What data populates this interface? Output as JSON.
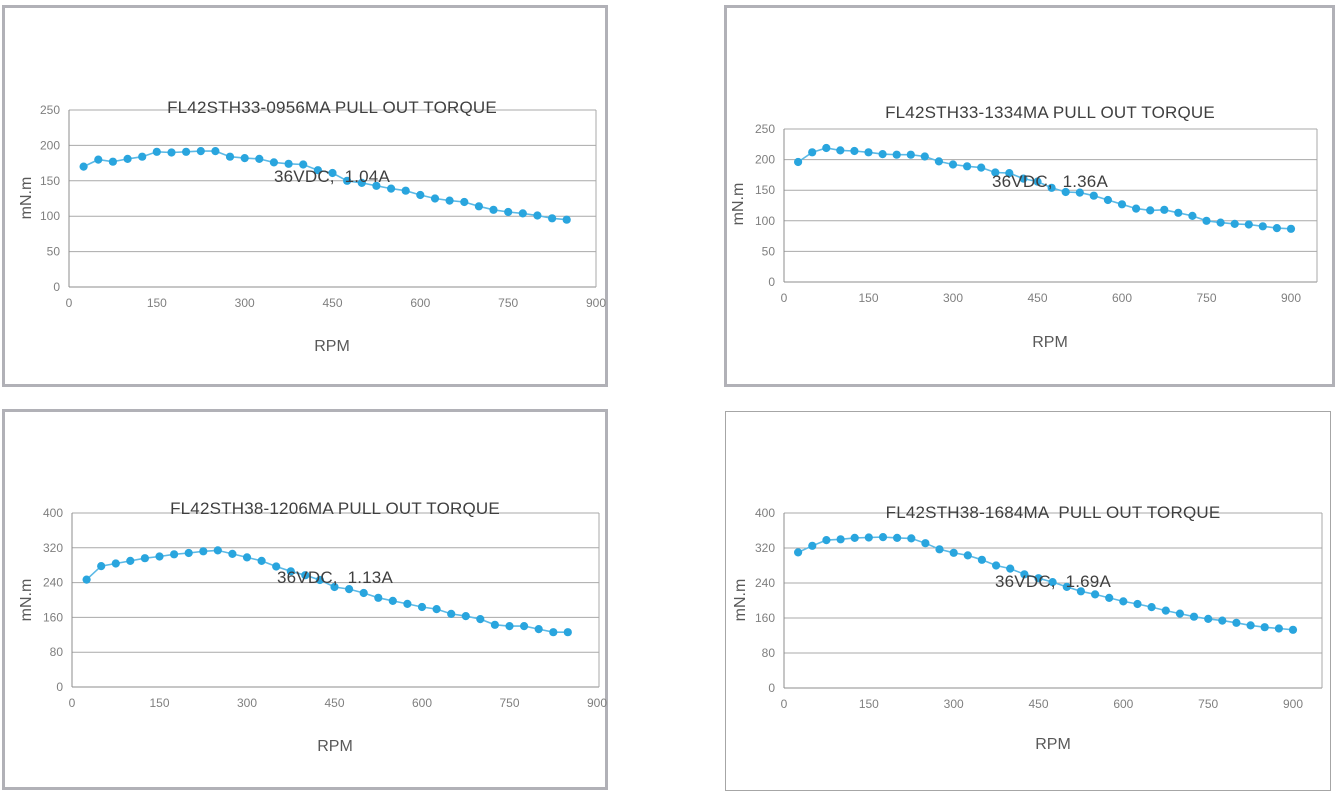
{
  "page": {
    "background": "#ffffff",
    "panel_border_color": "#b1b1b7"
  },
  "chart_data": [
    {
      "type": "line",
      "title": "FL42STH33-0956MA PULL OUT TORQUE",
      "subtitle": "36VDC,  1.04A",
      "ylabel": "mN.m",
      "xlabel": "RPM",
      "ylim": [
        0,
        250
      ],
      "xlim": [
        0,
        900
      ],
      "yticks": [
        0,
        50,
        100,
        150,
        200,
        250
      ],
      "xticks": [
        0,
        150,
        300,
        450,
        600,
        750,
        900
      ],
      "grid": "horizontal",
      "legend": "none",
      "x": [
        25,
        50,
        75,
        100,
        125,
        150,
        175,
        200,
        225,
        250,
        275,
        300,
        325,
        350,
        375,
        400,
        425,
        450,
        475,
        500,
        525,
        550,
        575,
        600,
        625,
        650,
        675,
        700,
        725,
        750,
        775,
        800,
        825,
        850
      ],
      "values": [
        170,
        180,
        177,
        181,
        184,
        191,
        190,
        191,
        192,
        192,
        184,
        182,
        181,
        176,
        174,
        173,
        165,
        161,
        150,
        147,
        143,
        139,
        136,
        130,
        125,
        122,
        120,
        114,
        109,
        106,
        104,
        101,
        97,
        95
      ],
      "line_color": "#5bb9e6",
      "marker_color": "#29a5de",
      "grid_color": "#a9a9a9",
      "axis_color": "#8c8c8c",
      "tick_label_color": "#7f7f7f"
    },
    {
      "type": "line",
      "title": "FL42STH33-1334MA PULL OUT TORQUE",
      "subtitle": "36VDC,  1.36A",
      "ylabel": "mN.m",
      "xlabel": "RPM",
      "ylim": [
        0,
        250
      ],
      "xlim": [
        0,
        945
      ],
      "yticks": [
        0,
        50,
        100,
        150,
        200,
        250
      ],
      "xticks": [
        0,
        150,
        300,
        450,
        600,
        750,
        900
      ],
      "grid": "horizontal",
      "legend": "none",
      "x": [
        25,
        50,
        75,
        100,
        125,
        150,
        175,
        200,
        225,
        250,
        275,
        300,
        325,
        350,
        375,
        400,
        425,
        450,
        475,
        500,
        525,
        550,
        575,
        600,
        625,
        650,
        675,
        700,
        725,
        750,
        775,
        800,
        825,
        850,
        875,
        900
      ],
      "values": [
        196,
        212,
        219,
        215,
        214,
        212,
        209,
        208,
        208,
        205,
        197,
        192,
        189,
        187,
        179,
        178,
        169,
        164,
        154,
        147,
        146,
        141,
        134,
        127,
        120,
        117,
        118,
        113,
        108,
        100,
        97,
        95,
        94,
        91,
        88,
        87
      ],
      "line_color": "#5bb9e6",
      "marker_color": "#29a5de",
      "grid_color": "#a9a9a9",
      "axis_color": "#8c8c8c",
      "tick_label_color": "#7f7f7f"
    },
    {
      "type": "line",
      "title": "FL42STH38-1206MA PULL OUT TORQUE",
      "subtitle": "36VDC,  1.13A",
      "ylabel": "mN.m",
      "xlabel": "RPM",
      "ylim": [
        0,
        400
      ],
      "xlim": [
        0,
        903
      ],
      "yticks": [
        0,
        80,
        160,
        240,
        320,
        400
      ],
      "xticks": [
        0,
        150,
        300,
        450,
        600,
        750,
        900
      ],
      "grid": "horizontal",
      "legend": "none",
      "x": [
        25,
        50,
        75,
        100,
        125,
        150,
        175,
        200,
        225,
        250,
        275,
        300,
        325,
        350,
        375,
        400,
        425,
        450,
        475,
        500,
        525,
        550,
        575,
        600,
        625,
        650,
        675,
        700,
        725,
        750,
        775,
        800,
        825,
        850
      ],
      "values": [
        247,
        278,
        284,
        290,
        296,
        300,
        305,
        308,
        312,
        314,
        306,
        298,
        290,
        277,
        266,
        257,
        246,
        230,
        225,
        216,
        205,
        198,
        191,
        184,
        179,
        168,
        163,
        156,
        143,
        140,
        140,
        133,
        126,
        126
      ],
      "line_color": "#5bb9e6",
      "marker_color": "#29a5de",
      "grid_color": "#a9a9a9",
      "axis_color": "#8c8c8c",
      "tick_label_color": "#7f7f7f"
    },
    {
      "type": "line",
      "title": "FL42STH38-1684MA  PULL OUT TORQUE",
      "subtitle": "36VDC,  1.69A",
      "ylabel": "mN.m",
      "xlabel": "RPM",
      "ylim": [
        0,
        400
      ],
      "xlim": [
        0,
        950
      ],
      "yticks": [
        0,
        80,
        160,
        240,
        320,
        400
      ],
      "xticks": [
        0,
        150,
        300,
        450,
        600,
        750,
        900
      ],
      "grid": "horizontal",
      "legend": "none",
      "x": [
        25,
        50,
        75,
        100,
        125,
        150,
        175,
        200,
        225,
        250,
        275,
        300,
        325,
        350,
        375,
        400,
        425,
        450,
        475,
        500,
        525,
        550,
        575,
        600,
        625,
        650,
        675,
        700,
        725,
        750,
        775,
        800,
        825,
        850,
        875,
        900
      ],
      "values": [
        310,
        325,
        338,
        340,
        343,
        344,
        345,
        343,
        342,
        331,
        317,
        309,
        303,
        293,
        280,
        273,
        260,
        251,
        242,
        231,
        221,
        214,
        206,
        198,
        192,
        185,
        177,
        170,
        163,
        158,
        154,
        149,
        143,
        139,
        136,
        133
      ],
      "line_color": "#5bb9e6",
      "marker_color": "#29a5de",
      "grid_color": "#a9a9a9",
      "axis_color": "#8c8c8c",
      "tick_label_color": "#7f7f7f"
    }
  ]
}
